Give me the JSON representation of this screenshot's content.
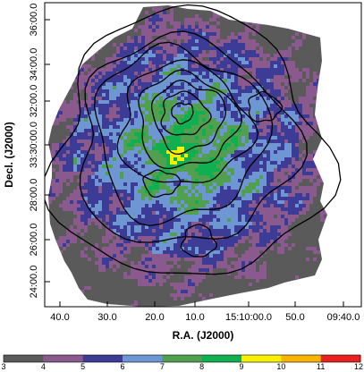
{
  "chart_data": {
    "type": "heatmap",
    "xlabel": "R.A. (J2000)",
    "ylabel": "Decl. (J2000)",
    "x_ticks": [
      "40.0",
      "30.0",
      "20.0",
      "10.0",
      "15:10:00.0",
      "50.0",
      "09:40.0"
    ],
    "y_ticks": [
      "24:00.0",
      "26:00.0",
      "28:00.0",
      "33:30:00.0",
      "32:00.0",
      "34:00.0",
      "36:00.0"
    ],
    "colorbar": {
      "ticks": [
        "3",
        "4",
        "5",
        "6",
        "7",
        "8",
        "9",
        "10",
        "11",
        "12"
      ],
      "min": 3,
      "max": 12,
      "colors": [
        "#5a5a5a",
        "#8a5a8f",
        "#3c3c96",
        "#6e96d2",
        "#50a050",
        "#10b050",
        "#f8f000",
        "#f8b400",
        "#e82020"
      ]
    },
    "overlay": "contours",
    "grid": false
  }
}
